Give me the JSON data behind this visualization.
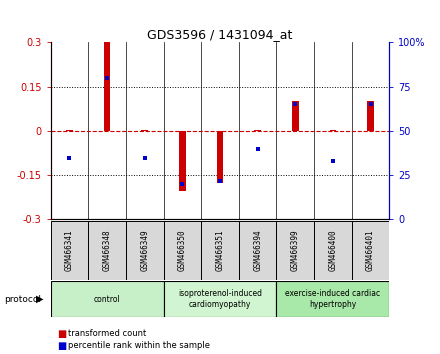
{
  "title": "GDS3596 / 1431094_at",
  "samples": [
    "GSM466341",
    "GSM466348",
    "GSM466349",
    "GSM466350",
    "GSM466351",
    "GSM466394",
    "GSM466399",
    "GSM466400",
    "GSM466401"
  ],
  "red_values": [
    0.003,
    0.302,
    0.002,
    -0.205,
    -0.175,
    0.002,
    0.102,
    0.002,
    0.102
  ],
  "blue_values": [
    35,
    80,
    35,
    20,
    22,
    40,
    65,
    33,
    65
  ],
  "ylim_left": [
    -0.3,
    0.3
  ],
  "ylim_right": [
    0,
    100
  ],
  "yticks_left": [
    -0.3,
    -0.15,
    0,
    0.15,
    0.3
  ],
  "yticks_right": [
    0,
    25,
    50,
    75,
    100
  ],
  "ytick_labels_left": [
    "-0.3",
    "-0.15",
    "0",
    "0.15",
    "0.3"
  ],
  "ytick_labels_right": [
    "0",
    "25",
    "50",
    "75",
    "100%"
  ],
  "groups": [
    {
      "label": "control",
      "start": 0,
      "end": 3,
      "color": "#c8f0c8"
    },
    {
      "label": "isoproterenol-induced\ncardiomyopathy",
      "start": 3,
      "end": 6,
      "color": "#d0f5d0"
    },
    {
      "label": "exercise-induced cardiac\nhypertrophy",
      "start": 6,
      "end": 9,
      "color": "#a8e8a8"
    }
  ],
  "red_color": "#cc0000",
  "blue_color": "#0000cc",
  "dashed_line_color": "#cc0000",
  "plot_bg_color": "#ffffff"
}
